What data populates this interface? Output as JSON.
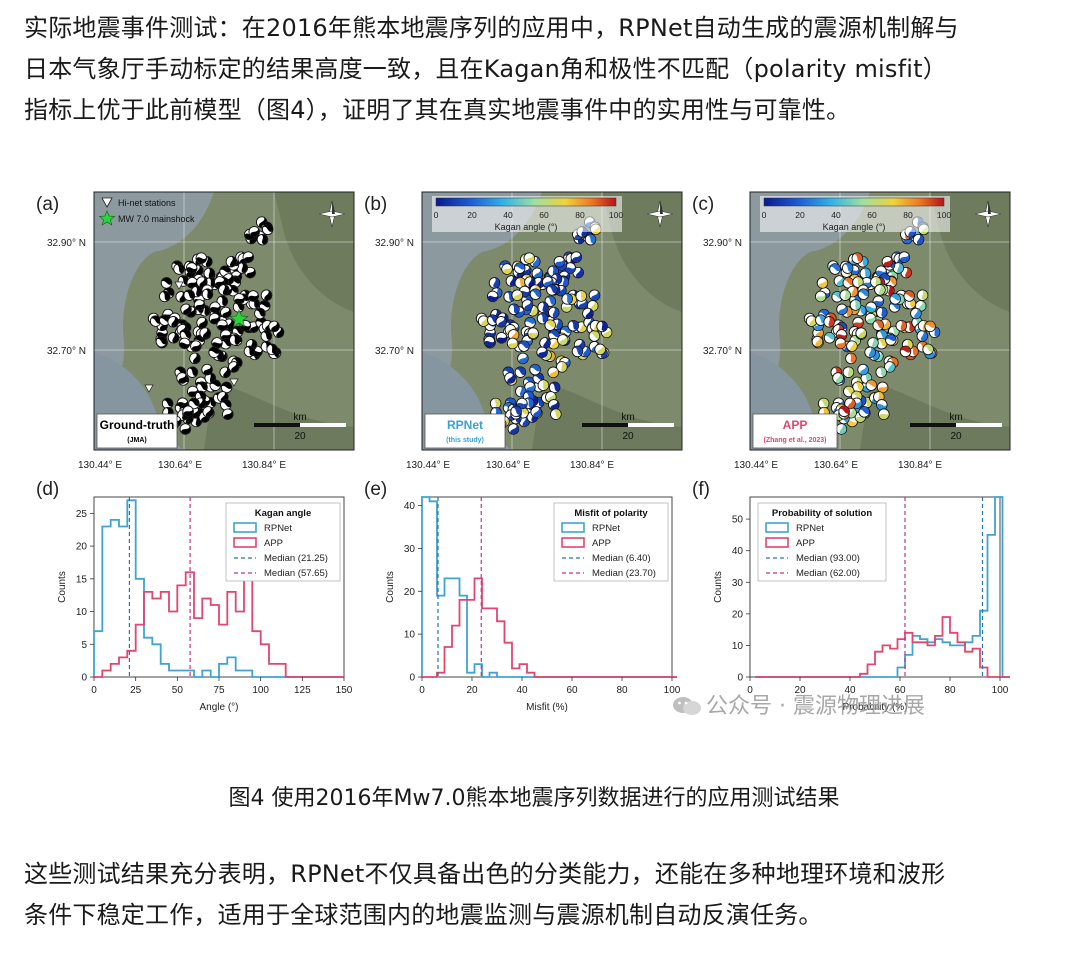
{
  "text": {
    "para_top_lines": [
      "实际地震事件测试：在2016年熊本地震序列的应用中，RPNet自动生成的震源机制解与",
      "日本气象厅手动标定的结果高度一致，且在Kagan角和极性不匹配（polarity misfit）",
      "指标上优于此前模型（图4），证明了其在真实地震事件中的实用性与可靠性。"
    ],
    "caption": "图4 使用2016年Mw7.0熊本地震序列数据进行的应用测试结果",
    "para_bottom_lines": [
      "这些测试结果充分表明，RPNet不仅具备出色的分类能力，还能在多种地理环境和波形",
      "条件下稳定工作，适用于全球范围内的地震监测与震源机制自动反演任务。"
    ],
    "watermark": "公众号 · 震源物理进展"
  },
  "maps": [
    {
      "panel_label": "(a)",
      "legend_station": "Hi-net stations",
      "legend_mainshock": "MW 7.0 mainshock",
      "badge_title": "Ground-truth",
      "badge_subtitle": "(JMA)",
      "badge_color": "#000000",
      "scale_unit": "km",
      "scale_value": "20",
      "colorbar": false
    },
    {
      "panel_label": "(b)",
      "badge_title": "RPNet",
      "badge_subtitle": "(this study)",
      "badge_color": "#3aa1d6",
      "scale_unit": "km",
      "scale_value": "20",
      "colorbar": true,
      "colorbar_ticks": [
        "0",
        "20",
        "40",
        "60",
        "80",
        "100"
      ],
      "colorbar_label": "Kagan angle (°)"
    },
    {
      "panel_label": "(c)",
      "badge_title": "APP",
      "badge_subtitle": "(Zhang et al., 2023)",
      "badge_color": "#e0466e",
      "scale_unit": "km",
      "scale_value": "20",
      "colorbar": true,
      "colorbar_ticks": [
        "0",
        "20",
        "40",
        "60",
        "80",
        "100"
      ],
      "colorbar_label": "Kagan angle (°)"
    }
  ],
  "map_axes": {
    "lat_ticks": [
      "32.90° N",
      "32.70° N"
    ],
    "lon_ticks": [
      "130.44° E",
      "130.64° E",
      "130.84° E"
    ]
  },
  "colors": {
    "rpnet": "#3fa3d4",
    "app": "#e0466e",
    "median_rpnet": "#1f77b4",
    "median_app": "#c2338a"
  },
  "chart_data": [
    {
      "type": "histogram",
      "panel_label": "(d)",
      "title": "Kagan angle",
      "xlabel": "Angle (°)",
      "ylabel": "Counts",
      "xlim": [
        0,
        150
      ],
      "ylim": [
        0,
        27.5
      ],
      "xticks": [
        0,
        25,
        50,
        75,
        100,
        125,
        150
      ],
      "yticks": [
        0,
        5,
        10,
        15,
        20,
        25
      ],
      "bin_width": 5,
      "x_start": 0,
      "series": [
        {
          "name": "RPNet",
          "values": [
            7,
            23,
            24,
            23,
            27,
            15,
            6,
            5,
            2,
            1,
            1,
            1,
            0,
            1,
            0,
            2,
            3,
            1,
            1,
            0,
            0,
            0,
            0,
            0,
            0,
            0,
            0,
            0,
            0,
            0
          ]
        },
        {
          "name": "APP",
          "values": [
            0,
            1,
            2,
            3,
            4,
            8,
            13,
            12,
            13,
            10,
            14,
            16,
            9,
            12,
            11,
            8,
            13,
            10,
            15,
            7,
            5,
            2,
            2,
            0,
            0,
            0,
            0,
            0,
            0,
            0
          ]
        }
      ],
      "medians": [
        {
          "name": "Median (21.25)",
          "value": 21.25,
          "series": "RPNet"
        },
        {
          "name": "Median (57.65)",
          "value": 57.65,
          "series": "APP"
        }
      ]
    },
    {
      "type": "histogram",
      "panel_label": "(e)",
      "title": "Misfit of polarity",
      "xlabel": "Misfit (%)",
      "ylabel": "Counts",
      "xlim": [
        0,
        100
      ],
      "ylim": [
        0,
        42
      ],
      "xticks": [
        0,
        20,
        40,
        60,
        80,
        100
      ],
      "yticks": [
        0,
        10,
        20,
        30,
        40
      ],
      "bin_width": 3,
      "x_start": 0,
      "series": [
        {
          "name": "RPNet",
          "values": [
            42,
            41,
            19,
            23,
            23,
            19,
            1,
            3,
            0,
            1,
            0,
            0,
            0,
            0,
            0,
            0,
            0,
            0,
            0,
            0,
            0,
            0,
            0,
            0,
            0,
            0,
            0,
            0,
            0,
            0,
            0,
            0,
            0,
            0
          ]
        },
        {
          "name": "APP",
          "values": [
            0,
            0,
            1,
            7,
            12,
            18,
            18,
            23,
            16,
            16,
            13,
            8,
            2,
            3,
            1,
            0,
            0,
            0,
            0,
            0,
            0,
            0,
            0,
            0,
            0,
            0,
            0,
            0,
            0,
            0,
            0,
            0,
            0,
            0
          ]
        }
      ],
      "medians": [
        {
          "name": "Median (6.40)",
          "value": 6.4,
          "series": "RPNet"
        },
        {
          "name": "Median (23.70)",
          "value": 23.7,
          "series": "APP"
        }
      ]
    },
    {
      "type": "histogram",
      "panel_label": "(f)",
      "title": "Probability of solution",
      "xlabel": "Probability (%)",
      "ylabel": "Counts",
      "xlim": [
        0,
        100
      ],
      "ylim": [
        0,
        57
      ],
      "xticks": [
        0,
        20,
        40,
        60,
        80,
        100
      ],
      "yticks": [
        0,
        10,
        20,
        30,
        40,
        50
      ],
      "bin_width": 3,
      "x_start": 2,
      "series": [
        {
          "name": "RPNet",
          "values": [
            0,
            0,
            0,
            0,
            0,
            0,
            0,
            0,
            0,
            0,
            0,
            0,
            0,
            0,
            0,
            0,
            0,
            0,
            0,
            3,
            7,
            13,
            12,
            11,
            12,
            11,
            10,
            10,
            11,
            13,
            21,
            45,
            57,
            0
          ]
        },
        {
          "name": "APP",
          "values": [
            0,
            0,
            0,
            0,
            0,
            0,
            0,
            0,
            0,
            0,
            0,
            0,
            0,
            0,
            1,
            4,
            8,
            10,
            9,
            12,
            14,
            11,
            11,
            10,
            13,
            19,
            14,
            11,
            8,
            9,
            3,
            0,
            0,
            0
          ]
        }
      ],
      "medians": [
        {
          "name": "Median (93.00)",
          "value": 93.0,
          "series": "RPNet"
        },
        {
          "name": "Median (62.00)",
          "value": 62.0,
          "series": "APP"
        }
      ]
    }
  ]
}
